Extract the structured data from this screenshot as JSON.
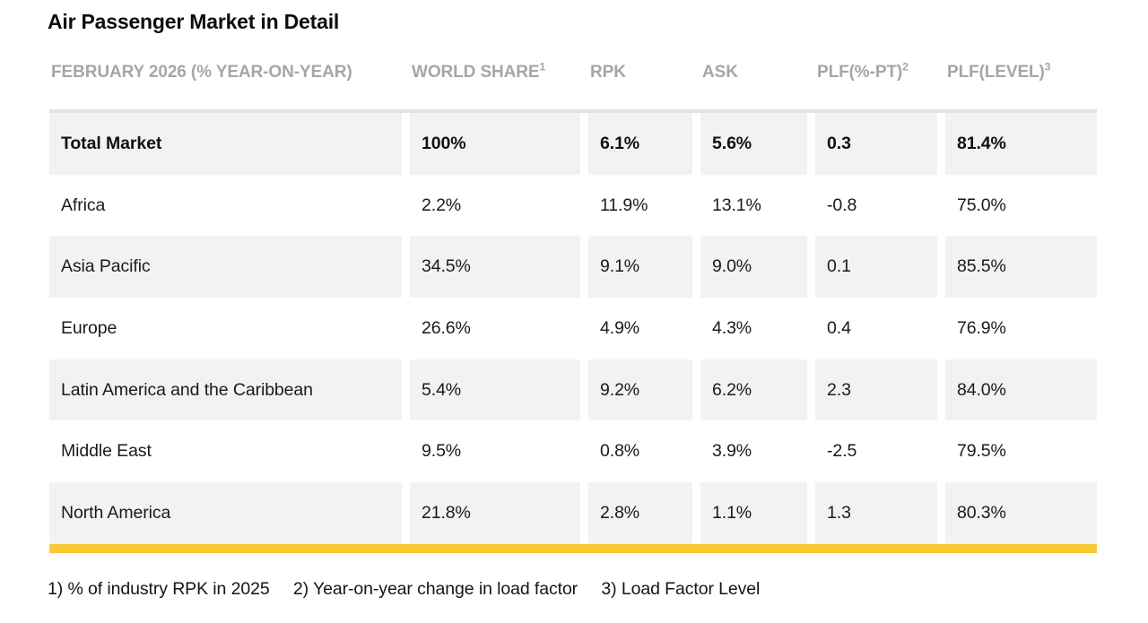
{
  "chart_data": {
    "type": "table",
    "title": "Air Passenger Market in Detail",
    "period_header": "FEBRUARY 2026 (% YEAR-ON-YEAR)",
    "columns": [
      {
        "label": "WORLD SHARE",
        "sup": "1"
      },
      {
        "label": "RPK",
        "sup": ""
      },
      {
        "label": "ASK",
        "sup": ""
      },
      {
        "label": "PLF(%-PT)",
        "sup": "2"
      },
      {
        "label": "PLF(LEVEL)",
        "sup": "3"
      }
    ],
    "rows": [
      {
        "region": "Total Market",
        "world_share": "100%",
        "rpk": "6.1%",
        "ask": "5.6%",
        "plf_pt": "0.3",
        "plf_level": "81.4%",
        "emphasis": true
      },
      {
        "region": "Africa",
        "world_share": "2.2%",
        "rpk": "11.9%",
        "ask": "13.1%",
        "plf_pt": "-0.8",
        "plf_level": "75.0%",
        "emphasis": false
      },
      {
        "region": "Asia Pacific",
        "world_share": "34.5%",
        "rpk": "9.1%",
        "ask": "9.0%",
        "plf_pt": "0.1",
        "plf_level": "85.5%",
        "emphasis": false
      },
      {
        "region": "Europe",
        "world_share": "26.6%",
        "rpk": "4.9%",
        "ask": "4.3%",
        "plf_pt": "0.4",
        "plf_level": "76.9%",
        "emphasis": false
      },
      {
        "region": "Latin America and the Caribbean",
        "world_share": "5.4%",
        "rpk": "9.2%",
        "ask": "6.2%",
        "plf_pt": "2.3",
        "plf_level": "84.0%",
        "emphasis": false
      },
      {
        "region": "Middle East",
        "world_share": "9.5%",
        "rpk": "0.8%",
        "ask": "3.9%",
        "plf_pt": "-2.5",
        "plf_level": "79.5%",
        "emphasis": false
      },
      {
        "region": "North America",
        "world_share": "21.8%",
        "rpk": "2.8%",
        "ask": "1.1%",
        "plf_pt": "1.3",
        "plf_level": "80.3%",
        "emphasis": false
      }
    ]
  },
  "footnotes": [
    "1) % of industry RPK in 2025",
    "2) Year-on-year change in load factor",
    "3) Load Factor Level"
  ],
  "colors": {
    "accent_bar": "#F8C932",
    "shaded_row": "#F2F2F2",
    "header_text": "#A6A6A6",
    "table_top_border": "#E3E3E3",
    "body_text": "#1A1A1A"
  }
}
